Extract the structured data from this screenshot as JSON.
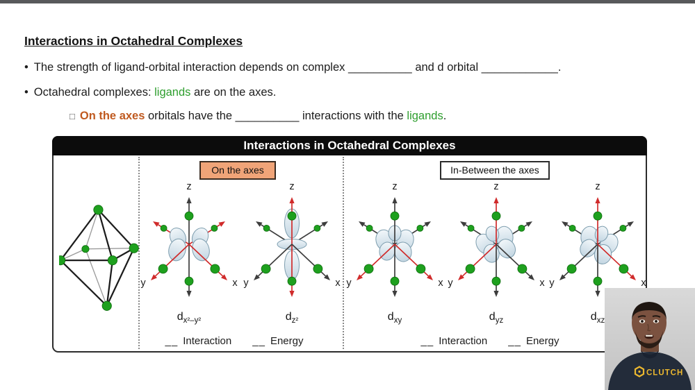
{
  "lesson": {
    "heading": "Interactions in Octahedral Complexes",
    "b1_marker": "•",
    "b1_text1": "The strength of ligand-orbital interaction depends on complex ",
    "b1_blank1": "__________",
    "b1_text2": " and d orbital ",
    "b1_blank2": "____________",
    "b1_period": ".",
    "b2_marker": "•",
    "b2_text1": "Octahedral complexes: ",
    "b2_ligands": "ligands",
    "b2_text2": " are on the axes.",
    "sub_marker": "□",
    "sub_emph": "On the axes",
    "sub_text1": " orbitals have the ",
    "sub_blank": "__________",
    "sub_text2": " interactions with the ",
    "sub_ligands": "ligands",
    "sub_period": "."
  },
  "panel": {
    "title": "Interactions in Octahedral Complexes",
    "group_left_label": "On the axes",
    "group_right_label": "In-Between the axes",
    "axis_labels": {
      "z": "z",
      "y": "y",
      "x": "x"
    },
    "orbitals": [
      {
        "id": "dx2-y2",
        "label_base": "d",
        "label_sub": "x²–y²",
        "lobes": "planar",
        "rot": 0,
        "red_rays": [
          "frontLeft",
          "frontRight",
          "backLeft",
          "backRight"
        ]
      },
      {
        "id": "dz2",
        "label_base": "d",
        "label_sub": "z²",
        "lobes": "dumbbell",
        "rot": 0,
        "red_rays": [
          "zTop",
          "zBottom"
        ]
      },
      {
        "id": "dxy",
        "label_base": "d",
        "label_sub": "xy",
        "lobes": "cluster",
        "rot": 0,
        "red_rays": [
          "frontLeft",
          "frontRight"
        ]
      },
      {
        "id": "dyz",
        "label_base": "d",
        "label_sub": "yz",
        "lobes": "cluster",
        "rot": -20,
        "red_rays": [
          "zTop",
          "frontLeft"
        ]
      },
      {
        "id": "dxz",
        "label_base": "d",
        "label_sub": "xz",
        "lobes": "cluster",
        "rot": 20,
        "red_rays": [
          "zTop",
          "frontRight"
        ]
      }
    ],
    "legend_left": {
      "blank1": "__",
      "interaction": "Interaction",
      "blank2": "__",
      "energy": "Energy"
    },
    "legend_right": {
      "blank1": "__",
      "interaction": "Interaction",
      "blank2": "__",
      "energy": "Energy"
    }
  },
  "webcam": {
    "shirt_text": "CLUTCH"
  },
  "colors": {
    "top_bar": "#58595b",
    "header_bg": "#0c0c0c",
    "accent_orange_text": "#c05a20",
    "accent_green_text": "#2e9e2e",
    "tag_orange_fill": "#f0a478",
    "axis_red": "#d02b2b",
    "axis_gray": "#3d3d3d",
    "ligand_green": "#1ea01e",
    "lobe_fill_light": "#f2f7fa",
    "lobe_fill_dark": "#c3d6e2",
    "lobe_stroke": "#7d9dae",
    "shirt_navy": "#232c3a",
    "logo_yellow": "#ecb82f"
  }
}
